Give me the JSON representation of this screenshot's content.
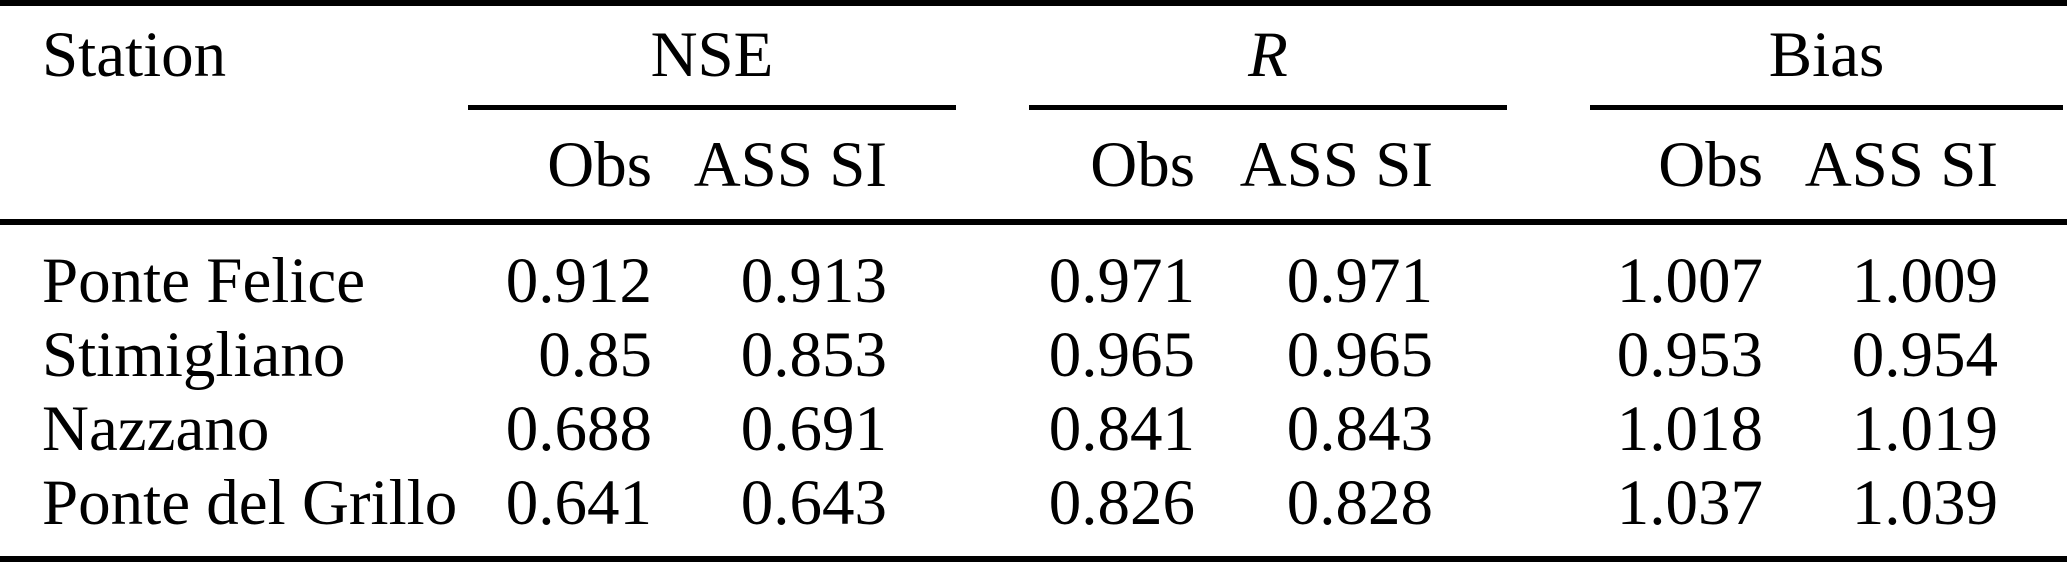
{
  "figure": {
    "station_header": "Station",
    "groups": [
      {
        "label": "NSE"
      },
      {
        "label": "R"
      },
      {
        "label": "Bias"
      }
    ],
    "subheaders": {
      "obs": "Obs",
      "ass_si": "ASS SI"
    },
    "rows": [
      {
        "station": "Ponte Felice",
        "nse_obs": "0.912",
        "nse_ass_si": "0.913",
        "r_obs": "0.971",
        "r_ass_si": "0.971",
        "bias_obs": "1.007",
        "bias_ass_si": "1.009"
      },
      {
        "station": "Stimigliano",
        "nse_obs": "0.85",
        "nse_ass_si": "0.853",
        "r_obs": "0.965",
        "r_ass_si": "0.965",
        "bias_obs": "0.953",
        "bias_ass_si": "0.954"
      },
      {
        "station": "Nazzano",
        "nse_obs": "0.688",
        "nse_ass_si": "0.691",
        "r_obs": "0.841",
        "r_ass_si": "0.843",
        "bias_obs": "1.018",
        "bias_ass_si": "1.019"
      },
      {
        "station": "Ponte del Grillo",
        "nse_obs": "0.641",
        "nse_ass_si": "0.643",
        "r_obs": "0.826",
        "r_ass_si": "0.828",
        "bias_obs": "1.037",
        "bias_ass_si": "1.039"
      }
    ]
  },
  "colors": {
    "text": "#000000",
    "rule": "#000000",
    "background": "#ffffff"
  },
  "chart_data": {
    "type": "table",
    "columns": [
      "Station",
      "NSE Obs",
      "NSE ASS SI",
      "R Obs",
      "R ASS SI",
      "Bias Obs",
      "Bias ASS SI"
    ],
    "rows": [
      [
        "Ponte Felice",
        0.912,
        0.913,
        0.971,
        0.971,
        1.007,
        1.009
      ],
      [
        "Stimigliano",
        0.85,
        0.853,
        0.965,
        0.965,
        0.953,
        0.954
      ],
      [
        "Nazzano",
        0.688,
        0.691,
        0.841,
        0.843,
        1.018,
        1.019
      ],
      [
        "Ponte del Grillo",
        0.641,
        0.643,
        0.826,
        0.828,
        1.037,
        1.039
      ]
    ]
  }
}
